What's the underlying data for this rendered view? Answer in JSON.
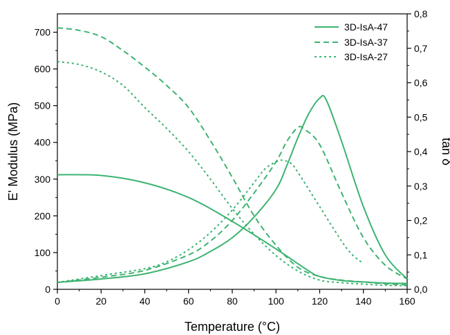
{
  "chart_data": {
    "type": "line",
    "xlabel": "Temperature (°C)",
    "ylabel": "E' Modulus (MPa)",
    "y2label": "tan δ",
    "xlim": [
      0,
      160
    ],
    "ylim": [
      0,
      750
    ],
    "y2lim": [
      0,
      0.8
    ],
    "xticks": [
      "0",
      "20",
      "40",
      "60",
      "80",
      "100",
      "120",
      "140",
      "160"
    ],
    "yticks": [
      "0",
      "100",
      "200",
      "300",
      "400",
      "500",
      "600",
      "700"
    ],
    "y2ticks": [
      "0,0",
      "0,1",
      "0,2",
      "0,3",
      "0,4",
      "0,5",
      "0,6",
      "0,7",
      "0,8"
    ],
    "grid": false,
    "legend_position": "top-right",
    "color": "#3cb371",
    "series": [
      {
        "name": "3D-IsA-47",
        "line_style": "solid",
        "modulus": [
          [
            0,
            312
          ],
          [
            20,
            310
          ],
          [
            40,
            290
          ],
          [
            60,
            250
          ],
          [
            80,
            185
          ],
          [
            100,
            110
          ],
          [
            115,
            50
          ],
          [
            120,
            35
          ],
          [
            130,
            24
          ],
          [
            140,
            20
          ],
          [
            150,
            17
          ],
          [
            160,
            16
          ]
        ],
        "tan_delta": [
          [
            0,
            0.02
          ],
          [
            20,
            0.03
          ],
          [
            40,
            0.045
          ],
          [
            60,
            0.08
          ],
          [
            70,
            0.11
          ],
          [
            80,
            0.15
          ],
          [
            90,
            0.21
          ],
          [
            100,
            0.29
          ],
          [
            105,
            0.36
          ],
          [
            110,
            0.44
          ],
          [
            115,
            0.51
          ],
          [
            120,
            0.555
          ],
          [
            123,
            0.55
          ],
          [
            130,
            0.43
          ],
          [
            140,
            0.24
          ],
          [
            150,
            0.1
          ],
          [
            160,
            0.03
          ]
        ]
      },
      {
        "name": "3D-IsA-37",
        "line_style": "dashed",
        "modulus": [
          [
            0,
            712
          ],
          [
            10,
            705
          ],
          [
            20,
            688
          ],
          [
            30,
            650
          ],
          [
            40,
            605
          ],
          [
            50,
            555
          ],
          [
            60,
            495
          ],
          [
            70,
            405
          ],
          [
            80,
            305
          ],
          [
            90,
            200
          ],
          [
            100,
            120
          ],
          [
            110,
            60
          ],
          [
            120,
            35
          ],
          [
            130,
            25
          ],
          [
            140,
            20
          ],
          [
            150,
            15
          ],
          [
            160,
            12
          ]
        ],
        "tan_delta": [
          [
            0,
            0.02
          ],
          [
            20,
            0.035
          ],
          [
            40,
            0.055
          ],
          [
            60,
            0.1
          ],
          [
            70,
            0.14
          ],
          [
            80,
            0.2
          ],
          [
            90,
            0.28
          ],
          [
            100,
            0.37
          ],
          [
            105,
            0.43
          ],
          [
            110,
            0.47
          ],
          [
            113,
            0.465
          ],
          [
            120,
            0.42
          ],
          [
            130,
            0.28
          ],
          [
            140,
            0.15
          ],
          [
            150,
            0.07
          ],
          [
            160,
            0.03
          ]
        ]
      },
      {
        "name": "3D-IsA-27",
        "line_style": "dotted",
        "modulus": [
          [
            0,
            620
          ],
          [
            10,
            612
          ],
          [
            20,
            592
          ],
          [
            30,
            555
          ],
          [
            40,
            495
          ],
          [
            50,
            438
          ],
          [
            60,
            375
          ],
          [
            70,
            300
          ],
          [
            80,
            220
          ],
          [
            90,
            150
          ],
          [
            100,
            92
          ],
          [
            110,
            50
          ],
          [
            120,
            25
          ],
          [
            130,
            18
          ],
          [
            140,
            14
          ],
          [
            150,
            11
          ],
          [
            160,
            10
          ]
        ],
        "tan_delta": [
          [
            0,
            0.02
          ],
          [
            20,
            0.04
          ],
          [
            40,
            0.06
          ],
          [
            50,
            0.08
          ],
          [
            60,
            0.115
          ],
          [
            70,
            0.165
          ],
          [
            80,
            0.23
          ],
          [
            90,
            0.31
          ],
          [
            95,
            0.35
          ],
          [
            100,
            0.37
          ],
          [
            103,
            0.375
          ],
          [
            107,
            0.365
          ],
          [
            110,
            0.34
          ],
          [
            120,
            0.24
          ],
          [
            130,
            0.14
          ],
          [
            135,
            0.1
          ],
          [
            140,
            0.075
          ]
        ]
      }
    ]
  }
}
